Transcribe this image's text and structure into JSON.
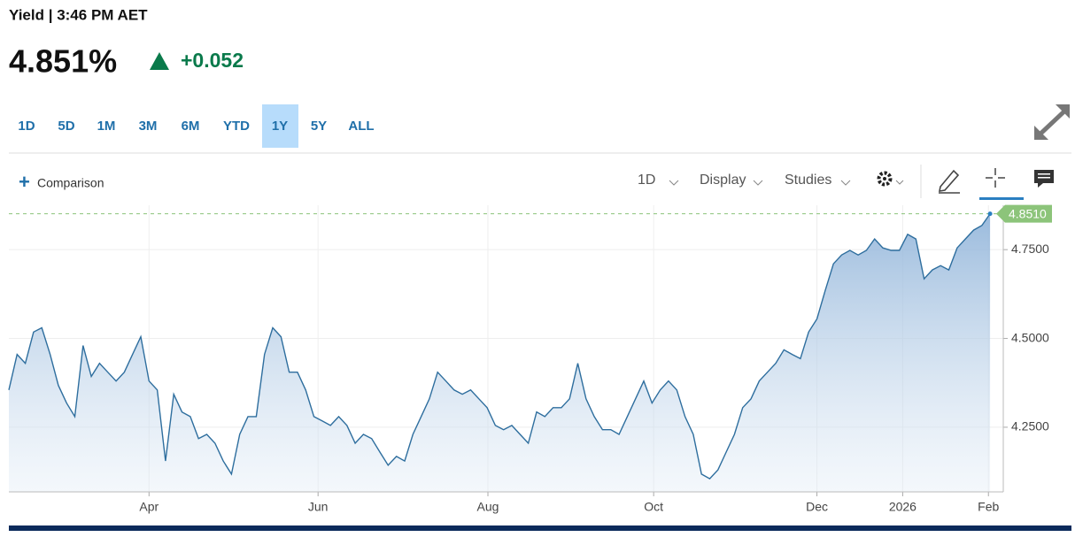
{
  "header": {
    "title": "Yield | 3:46 PM AET",
    "price": "4.851%",
    "change": "+0.052"
  },
  "ranges": [
    "1D",
    "5D",
    "1M",
    "3M",
    "6M",
    "YTD",
    "1Y",
    "5Y",
    "ALL"
  ],
  "selected_range": "1Y",
  "toolbar": {
    "comparison": "Comparison",
    "interval": "1D",
    "display": "Display",
    "studies": "Studies"
  },
  "chart_data": {
    "type": "line",
    "color": "#2e6e9e",
    "values": [
      4.355,
      4.455,
      4.43,
      4.518,
      4.53,
      4.455,
      4.368,
      4.318,
      4.28,
      4.48,
      4.393,
      4.43,
      4.405,
      4.38,
      4.405,
      4.455,
      4.505,
      4.38,
      4.355,
      4.155,
      4.343,
      4.293,
      4.28,
      4.218,
      4.23,
      4.205,
      4.155,
      4.118,
      4.23,
      4.28,
      4.28,
      4.455,
      4.53,
      4.505,
      4.405,
      4.405,
      4.355,
      4.28,
      4.268,
      4.255,
      4.28,
      4.255,
      4.205,
      4.23,
      4.218,
      4.18,
      4.143,
      4.168,
      4.155,
      4.23,
      4.28,
      4.33,
      4.405,
      4.38,
      4.355,
      4.343,
      4.355,
      4.33,
      4.305,
      4.255,
      4.243,
      4.255,
      4.23,
      4.205,
      4.293,
      4.28,
      4.305,
      4.305,
      4.33,
      4.43,
      4.33,
      4.28,
      4.243,
      4.243,
      4.23,
      4.28,
      4.33,
      4.38,
      4.318,
      4.355,
      4.38,
      4.355,
      4.28,
      4.23,
      4.118,
      4.105,
      4.13,
      4.18,
      4.23,
      4.305,
      4.33,
      4.38,
      4.405,
      4.43,
      4.468,
      4.455,
      4.443,
      4.518,
      4.555,
      4.635,
      4.71,
      4.735,
      4.748,
      4.735,
      4.748,
      4.78,
      4.755,
      4.748,
      4.748,
      4.793,
      4.78,
      4.668,
      4.693,
      4.705,
      4.693,
      4.755,
      4.78,
      4.805,
      4.818,
      4.851
    ],
    "last_value_label": "4.8510",
    "ylim": [
      4.068,
      4.875
    ],
    "yticks": [
      {
        "value": 4.25,
        "label": "4.2500"
      },
      {
        "value": 4.5,
        "label": "4.5000"
      },
      {
        "value": 4.75,
        "label": "4.7500"
      }
    ],
    "xlim": [
      0,
      120.6
    ],
    "xticks": [
      {
        "value": 17,
        "label": "Apr"
      },
      {
        "value": 37.5,
        "label": "Jun"
      },
      {
        "value": 58.1,
        "label": "Aug"
      },
      {
        "value": 78.2,
        "label": "Oct"
      },
      {
        "value": 98,
        "label": "Dec"
      },
      {
        "value": 108.4,
        "label": "2026"
      },
      {
        "value": 118.8,
        "label": "Feb"
      }
    ],
    "grid": true
  }
}
